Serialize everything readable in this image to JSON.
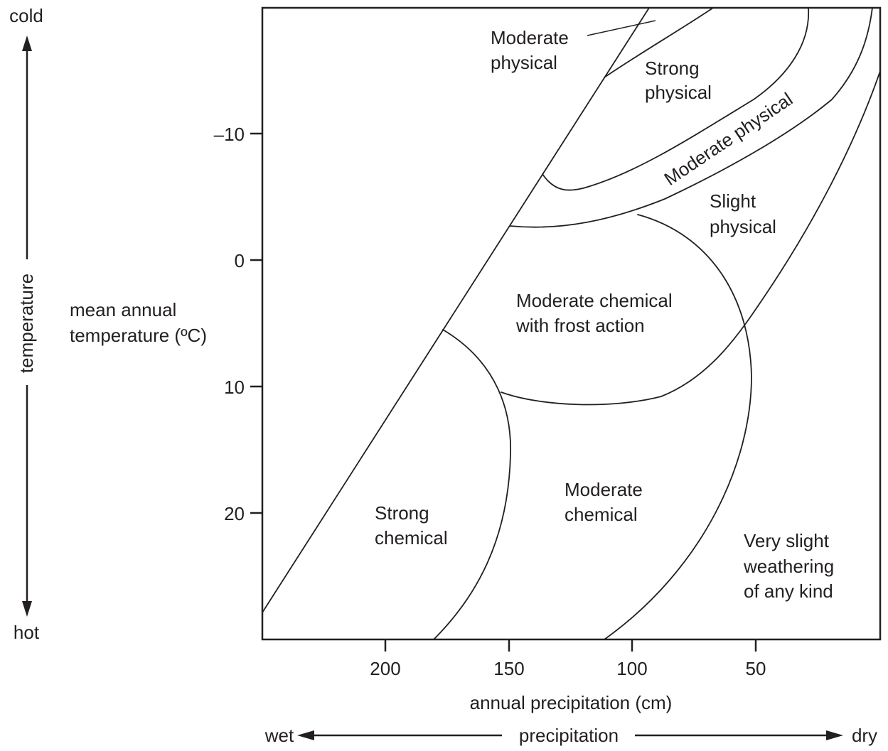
{
  "axes": {
    "x_label": "annual precipitation (cm)",
    "y_label_line1": "mean annual",
    "y_label_line2": "temperature (ºC)",
    "x_ticks": [
      "200",
      "150",
      "100",
      "50"
    ],
    "y_ticks": [
      "–10",
      "0",
      "10",
      "20"
    ]
  },
  "direction": {
    "cold": "cold",
    "hot": "hot",
    "temperature": "temperature",
    "wet": "wet",
    "dry": "dry",
    "precipitation": "precipitation"
  },
  "regions": {
    "moderate_physical_top": [
      "Moderate",
      "physical"
    ],
    "strong_physical": [
      "Strong",
      "physical"
    ],
    "moderate_physical_band": "Moderate physical",
    "slight_physical": [
      "Slight",
      "physical"
    ],
    "moderate_chemical_frost": [
      "Moderate chemical",
      "with frost action"
    ],
    "strong_chemical": [
      "Strong",
      "chemical"
    ],
    "moderate_chemical": [
      "Moderate",
      "chemical"
    ],
    "very_slight": [
      "Very slight",
      "weathering",
      "of any kind"
    ]
  },
  "colors": {
    "ink": "#231f20",
    "background": "#ffffff"
  }
}
